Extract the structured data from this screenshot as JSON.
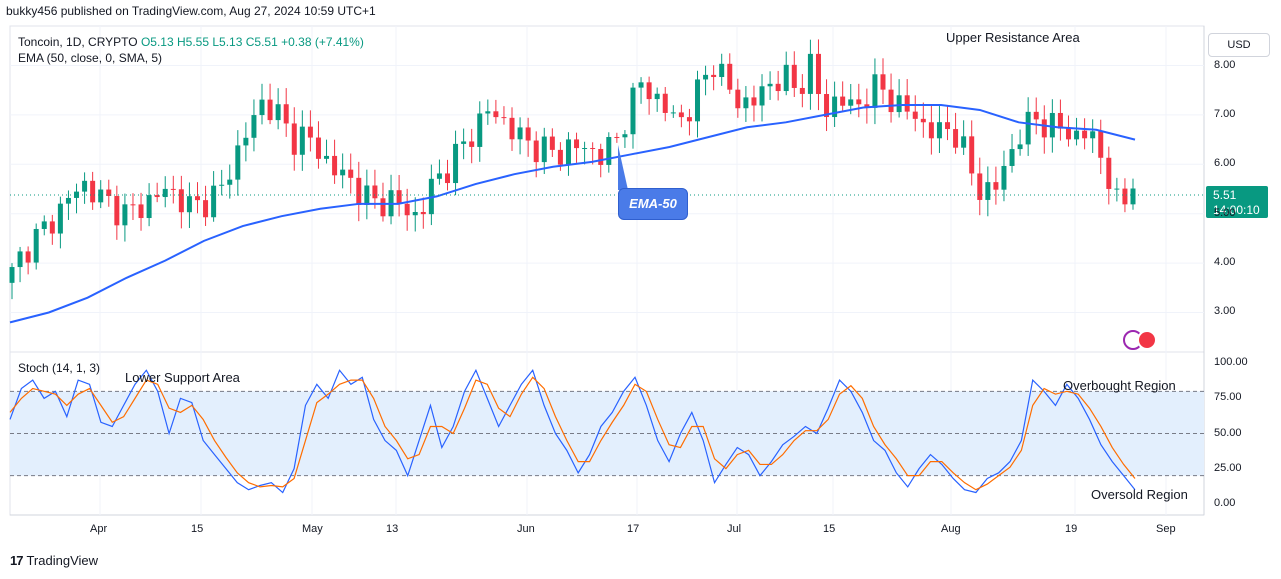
{
  "header": "bukky456 published on TradingView.com, Aug 27, 2024 10:59 UTC+1",
  "symbol": {
    "name": "Toncoin, 1D, CRYPTO",
    "open": "O5.13",
    "high": "H5.55",
    "low": "L5.13",
    "close": "C5.51",
    "change": "+0.38 (+7.41%)"
  },
  "ema_label": "EMA (50, close, 0, SMA, 5)",
  "stoch_label": "Stoch (14, 1, 3)",
  "currency": "USD",
  "price_tag": {
    "price": "5.51",
    "countdown": "14:00:10"
  },
  "annotations": {
    "upper_resistance": "Upper Resistance Area",
    "lower_support": "Lower Support Area",
    "ema_badge": "EMA-50",
    "overbought": "Overbought Region",
    "oversold": "Oversold Region"
  },
  "footer": {
    "logo": "17",
    "brand": "TradingView"
  },
  "colors": {
    "up": "#089981",
    "down": "#f23645",
    "ema": "#2962ff",
    "stoch_k": "#2962ff",
    "stoch_d": "#ff6d00",
    "band": "#e3effd"
  },
  "chart_data": [
    {
      "type": "candlestick",
      "title": "Toncoin, 1D, CRYPTO",
      "y_ticks": [
        "3.00",
        "4.00",
        "5.00",
        "6.00",
        "7.00",
        "8.00"
      ],
      "ylim": [
        2.2,
        8.8
      ],
      "x_ticks": [
        "Apr",
        "15",
        "May",
        "13",
        "Jun",
        "17",
        "Jul",
        "15",
        "Aug",
        "19",
        "Sep"
      ],
      "close_series": [
        3.8,
        4.3,
        4.6,
        4.9,
        5.3,
        5.6,
        5.4,
        5.2,
        5.0,
        5.1,
        5.3,
        5.5,
        5.3,
        5.1,
        5.3,
        5.5,
        6.2,
        6.8,
        7.3,
        7.0,
        6.5,
        6.6,
        6.2,
        5.9,
        5.7,
        5.4,
        5.2,
        5.3,
        5.1,
        4.9,
        5.6,
        5.9,
        6.3,
        6.7,
        7.1,
        6.9,
        6.6,
        6.4,
        6.3,
        6.2,
        6.4,
        6.3,
        6.2,
        6.4,
        7.1,
        7.7,
        7.3,
        7.0,
        6.9,
        7.5,
        8.1,
        7.6,
        7.2,
        7.3,
        7.6,
        7.8,
        7.5,
        8.0,
        7.0,
        7.4,
        7.1,
        7.4,
        7.6,
        7.2,
        7.1,
        6.8,
        6.6,
        6.8,
        6.2,
        5.5,
        5.4,
        6.1,
        6.6,
        7.0,
        6.7,
        6.8,
        6.5,
        6.7,
        5.9,
        5.1,
        5.51
      ],
      "ema50_series": [
        2.8,
        3.0,
        3.3,
        3.7,
        4.05,
        4.45,
        4.75,
        4.95,
        5.1,
        5.2,
        5.2,
        5.35,
        5.6,
        5.8,
        5.95,
        6.05,
        6.2,
        6.35,
        6.55,
        6.75,
        6.85,
        7.0,
        7.15,
        7.2,
        7.2,
        7.1,
        6.85,
        6.75,
        6.7,
        6.5
      ],
      "last_price": 5.51
    },
    {
      "type": "line",
      "title": "Stoch (14, 1, 3)",
      "y_ticks": [
        "0.00",
        "25.00",
        "50.00",
        "75.00",
        "100.00"
      ],
      "ylim": [
        -8,
        108
      ],
      "bands": [
        20,
        50,
        80
      ],
      "series": [
        {
          "name": "%K",
          "values": [
            60,
            82,
            88,
            75,
            80,
            62,
            88,
            85,
            58,
            55,
            70,
            85,
            95,
            80,
            50,
            75,
            72,
            45,
            35,
            25,
            15,
            10,
            13,
            15,
            8,
            25,
            70,
            85,
            75,
            95,
            85,
            90,
            60,
            45,
            38,
            20,
            45,
            70,
            40,
            55,
            80,
            95,
            75,
            55,
            70,
            85,
            95,
            70,
            50,
            38,
            22,
            35,
            55,
            65,
            80,
            90,
            70,
            45,
            30,
            50,
            65,
            45,
            15,
            28,
            40,
            35,
            20,
            30,
            42,
            48,
            55,
            50,
            68,
            88,
            80,
            65,
            45,
            38,
            22,
            12,
            25,
            35,
            28,
            18,
            10,
            8,
            18,
            22,
            30,
            45,
            88,
            80,
            70,
            85,
            75,
            60,
            42,
            30,
            20,
            10
          ]
        },
        {
          "name": "%D",
          "values": [
            65,
            75,
            82,
            80,
            78,
            70,
            78,
            82,
            70,
            58,
            62,
            75,
            88,
            85,
            68,
            65,
            70,
            60,
            45,
            33,
            22,
            15,
            12,
            13,
            12,
            18,
            45,
            72,
            78,
            85,
            88,
            88,
            75,
            55,
            45,
            32,
            35,
            55,
            55,
            50,
            68,
            88,
            85,
            68,
            62,
            78,
            90,
            82,
            62,
            45,
            30,
            30,
            45,
            58,
            70,
            85,
            80,
            60,
            42,
            40,
            55,
            55,
            32,
            25,
            35,
            38,
            28,
            28,
            35,
            45,
            52,
            52,
            60,
            78,
            84,
            75,
            55,
            42,
            32,
            20,
            20,
            30,
            30,
            22,
            15,
            10,
            14,
            20,
            26,
            38,
            70,
            82,
            78,
            80,
            78,
            68,
            55,
            40,
            28,
            18
          ]
        }
      ]
    }
  ]
}
